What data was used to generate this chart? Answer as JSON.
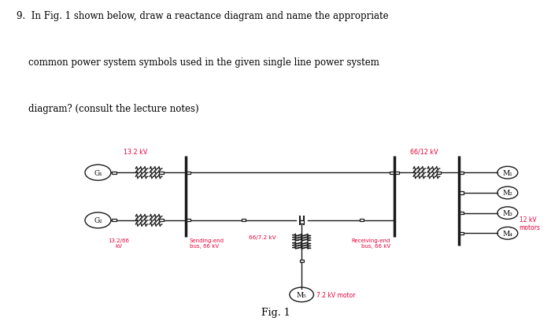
{
  "title_line1": "9.  In Fig. 1 shown below, draw a reactance diagram and name the appropriate",
  "title_line2": "    common power system symbols used in the given single line power system",
  "title_line3": "    diagram? (consult the lecture notes)",
  "fig_caption": "Fig. 1",
  "label_color": "#e8003a",
  "line_color": "#1a1a1a",
  "label_13_2kv": "13.2 kV",
  "label_66_12kv": "66/12 kV",
  "label_13_2_66kv": "13.2/66\nkV",
  "label_sending": "Sending-end\nbus, 66 kV",
  "label_receiving": "Receiving-end\nbus, 66 kV",
  "label_66_7_2kv": "66/7.2 kV",
  "label_7_2kv_motor": "7.2 kV motor",
  "label_12kv_motors": "12 kV\nmotors",
  "G1": "G₁",
  "G2": "G₂",
  "M1": "M₁",
  "M2": "M₂",
  "M3": "M₃",
  "M4": "M₄",
  "M5": "M₅"
}
